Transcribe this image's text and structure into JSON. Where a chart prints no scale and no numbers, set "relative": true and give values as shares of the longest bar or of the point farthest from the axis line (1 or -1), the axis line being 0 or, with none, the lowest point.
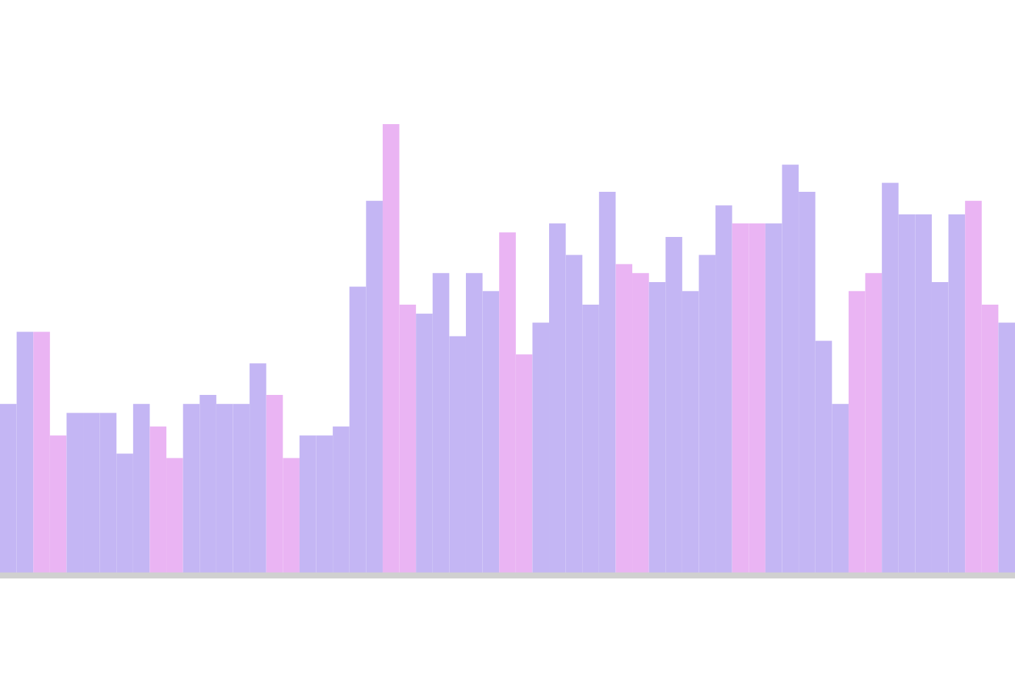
{
  "chart_data": {
    "type": "bar",
    "relative": true,
    "categories": [
      null,
      null,
      null,
      null,
      null,
      null,
      null,
      null,
      null,
      null,
      null,
      null,
      null,
      null,
      null,
      null,
      null,
      null,
      null,
      null,
      null,
      null,
      null,
      null,
      null,
      null,
      null,
      null,
      null,
      null,
      null,
      null,
      null,
      null,
      null,
      null,
      null,
      null,
      null,
      null,
      null,
      null,
      null,
      null,
      null,
      null,
      null,
      null,
      null,
      null,
      null,
      null,
      null,
      null,
      null,
      null,
      null,
      null,
      null,
      null,
      null
    ],
    "values": [
      0.38,
      0.54,
      0.54,
      0.31,
      0.36,
      0.36,
      0.36,
      0.27,
      0.38,
      0.33,
      0.26,
      0.38,
      0.4,
      0.38,
      0.38,
      0.47,
      0.4,
      0.26,
      0.31,
      0.31,
      0.33,
      0.64,
      0.83,
      1,
      0.6,
      0.58,
      0.67,
      0.53,
      0.67,
      0.63,
      0.76,
      0.49,
      0.56,
      0.78,
      0.71,
      0.6,
      0.85,
      0.69,
      0.67,
      0.65,
      0.75,
      0.63,
      0.71,
      0.82,
      0.78,
      0.78,
      0.78,
      0.91,
      0.85,
      0.52,
      0.38,
      0.63,
      0.67,
      0.87,
      0.8,
      0.8,
      0.65,
      0.8,
      0.83,
      0.6,
      0.56
    ],
    "colors": [
      "#c4b6f4",
      "#c4b6f4",
      "#eab4f3",
      "#eab4f3",
      "#c4b6f4",
      "#c4b6f4",
      "#c4b6f4",
      "#c4b6f4",
      "#c4b6f4",
      "#eab4f3",
      "#eab4f3",
      "#c4b6f4",
      "#c4b6f4",
      "#c4b6f4",
      "#c4b6f4",
      "#c4b6f4",
      "#eab4f3",
      "#eab4f3",
      "#c4b6f4",
      "#c4b6f4",
      "#c4b6f4",
      "#c4b6f4",
      "#c4b6f4",
      "#eab4f3",
      "#eab4f3",
      "#c4b6f4",
      "#c4b6f4",
      "#c4b6f4",
      "#c4b6f4",
      "#c4b6f4",
      "#eab4f3",
      "#eab4f3",
      "#c4b6f4",
      "#c4b6f4",
      "#c4b6f4",
      "#c4b6f4",
      "#c4b6f4",
      "#eab4f3",
      "#eab4f3",
      "#c4b6f4",
      "#c4b6f4",
      "#c4b6f4",
      "#c4b6f4",
      "#c4b6f4",
      "#eab4f3",
      "#eab4f3",
      "#c4b6f4",
      "#c4b6f4",
      "#c4b6f4",
      "#c4b6f4",
      "#c4b6f4",
      "#eab4f3",
      "#eab4f3",
      "#c4b6f4",
      "#c4b6f4",
      "#c4b6f4",
      "#c4b6f4",
      "#c4b6f4",
      "#eab4f3",
      "#eab4f3",
      "#c4b6f4"
    ]
  }
}
